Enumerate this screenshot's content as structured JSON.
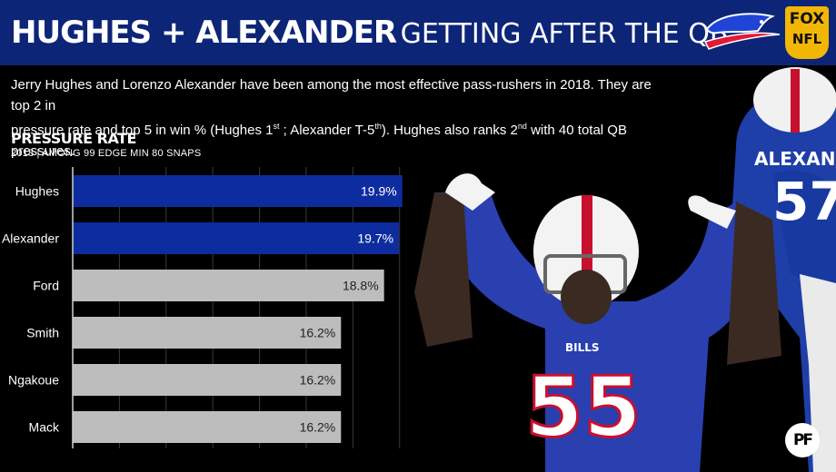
{
  "header": {
    "title_bold": "HUGHES + ALEXANDER",
    "title_light": "GETTING AFTER THE QB",
    "network_badge": {
      "line1": "FOX",
      "line2": "NFL"
    }
  },
  "description": {
    "line1": "Jerry Hughes and Lorenzo Alexander have been among the most effective pass-rushers in 2018. They are top 2 in",
    "line2_a": "pressure rate and top 5 in win % (Hughes 1",
    "line2_sup1": "st",
    "line2_b": " ; Alexander T-5",
    "line2_sup2": "th",
    "line2_c": "). Hughes also ranks 2",
    "line2_sup3": "nd",
    "line2_d": " with 40 total QB pressures."
  },
  "chart_data": {
    "type": "bar",
    "orientation": "horizontal",
    "title": "PRESSURE RATE",
    "subtitle": "2018 | AMONG 99 EDGE MIN 80 SNAPS",
    "categories": [
      "Hughes",
      "Alexander",
      "Ford",
      "Smith",
      "Ngakoue",
      "Mack"
    ],
    "values": [
      19.9,
      19.7,
      18.8,
      16.2,
      16.2,
      16.2
    ],
    "value_labels": [
      "19.9%",
      "19.7%",
      "18.8%",
      "16.2%",
      "16.2%",
      "16.2%"
    ],
    "highlight": [
      true,
      true,
      false,
      false,
      false,
      false
    ],
    "xlim": [
      0,
      20.3
    ],
    "grid": true,
    "colors": {
      "highlight": "#0d2c9f",
      "default": "#bdbdbd",
      "highlight_text": "#ffffff",
      "default_text": "#222222"
    }
  },
  "branding": {
    "logo_text": "PF"
  },
  "icons": {
    "team_logo": "buffalo-bills-logo-icon",
    "photo": "player-photo"
  }
}
